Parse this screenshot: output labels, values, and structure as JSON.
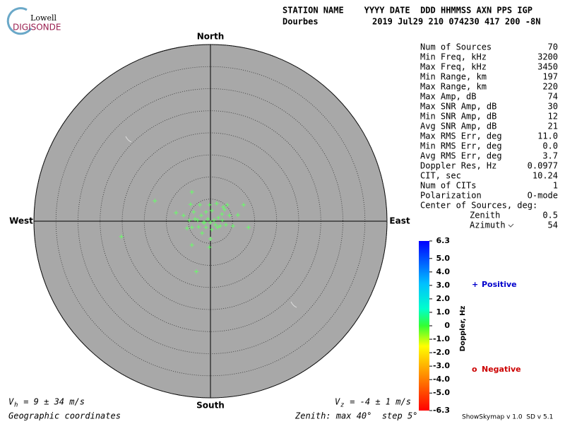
{
  "logo": {
    "top": "Lowell",
    "bottom": "DIGISONDE"
  },
  "header": {
    "labels": "STATION NAME    YYYY DATE  DDD HHMMSS AXN PPS IGP",
    "station": "Dourbes",
    "values": "2019 Jul29 210 074230 417 200 -8N"
  },
  "chart_data": {
    "type": "skymap",
    "directions": {
      "north": "North",
      "south": "South",
      "east": "East",
      "west": "West"
    },
    "rlim": [
      0,
      40
    ],
    "rticks": [
      5,
      10,
      15,
      20,
      25,
      30,
      35,
      40
    ],
    "grid": true,
    "series": [
      {
        "name": "Positive",
        "color": "#66ff66",
        "legend_color": "#0000cc",
        "marker": "+",
        "x": [
          -12.6,
          -4.2,
          -4.5,
          -7.8,
          -6.1,
          -3.8,
          -2.4,
          -0.2,
          1.4,
          2.9,
          3.8,
          7.5,
          6.2,
          4.3,
          2.6,
          0.3,
          -1.0,
          -2.1,
          -2.9,
          -3.5,
          -1.3,
          0,
          1.1,
          2.2,
          3.5,
          8.6,
          5.1,
          -20.2,
          -5.3,
          -4.2,
          -2.7,
          0,
          -0.2,
          -4.2,
          -3.2,
          -1.6,
          -0.6,
          0.8,
          1.8,
          3.2,
          0.3,
          -1.9,
          1.6,
          2.7,
          -4.8,
          -1.0
        ],
        "y": [
          4.6,
          6.6,
          3.8,
          1.9,
          1.3,
          2.1,
          3.7,
          3.7,
          4.0,
          3.2,
          3.7,
          3.7,
          1.4,
          1.3,
          1.6,
          2.4,
          2.1,
          1.3,
          0.2,
          0.5,
          -0.3,
          -0.3,
          -0.8,
          -1.1,
          -0.8,
          -1.4,
          -1.1,
          -3.5,
          -1.6,
          -1.4,
          -1.3,
          -4.0,
          -5.9,
          -5.4,
          -11.4,
          -0.3,
          0.5,
          0.2,
          0.8,
          2.6,
          -1.9,
          -2.7,
          -1.4,
          0.2,
          0.2,
          -1.4
        ]
      },
      {
        "name": "Negative",
        "color": "#cc0000",
        "marker": "o",
        "x": [],
        "y": []
      }
    ],
    "colorbar": {
      "label": "Doppler, Hz",
      "lim": [
        -6.3,
        6.3
      ],
      "ticks": [
        6.3,
        {
          "value": 5,
          "label": "5.0"
        },
        {
          "value": 4,
          "label": "4.0"
        },
        {
          "value": 3,
          "label": "3.0"
        },
        {
          "value": 2,
          "label": "2.0"
        },
        {
          "value": 1,
          "label": "1.0"
        },
        0,
        {
          "value": -1,
          "label": "-1.0"
        },
        {
          "value": -2,
          "label": "-2.0"
        },
        {
          "value": -3,
          "label": "-3.0"
        },
        {
          "value": -4,
          "label": "-4.0"
        },
        {
          "value": -5,
          "label": "-5.0"
        },
        -6.3
      ]
    }
  },
  "stats": {
    "rows": [
      [
        "Num of Sources",
        "70"
      ],
      [
        "Min Freq, kHz",
        "3200"
      ],
      [
        "Max Freq, kHz",
        "3450"
      ],
      [
        "Min Range, km",
        "197"
      ],
      [
        "Max Range, km",
        "220"
      ],
      [
        "Max Amp, dB",
        "74"
      ],
      [
        "Max SNR Amp, dB",
        "30"
      ],
      [
        "Min SNR Amp, dB",
        "12"
      ],
      [
        "Avg SNR Amp, dB",
        "21"
      ],
      [
        "Max RMS Err, deg",
        "11.0"
      ],
      [
        "Min RMS Err, deg",
        "0.0"
      ],
      [
        "Avg RMS Err, deg",
        "3.7"
      ],
      [
        "Doppler Res, Hz",
        "0.0977"
      ],
      [
        "CIT, sec",
        "10.24"
      ],
      [
        "Num of CITs",
        "1"
      ],
      [
        "Polarization",
        "O-mode"
      ]
    ],
    "center_heading": "Center of Sources, deg:",
    "center_rows": [
      [
        "Zenith",
        "0.5"
      ],
      [
        "Azimuth",
        "54"
      ]
    ]
  },
  "footer": {
    "vh": {
      "symbol": "V",
      "sub": "h",
      "text": " = 9 ± 34 m/s"
    },
    "vz": {
      "symbol": "V",
      "sub": "z",
      "text": " = -4 ± 1 m/s"
    },
    "coords": "Geographic coordinates",
    "zenith": "Zenith: max 40°  step 5°",
    "version": "ShowSkymap v 1.0  SD v 5.1"
  }
}
